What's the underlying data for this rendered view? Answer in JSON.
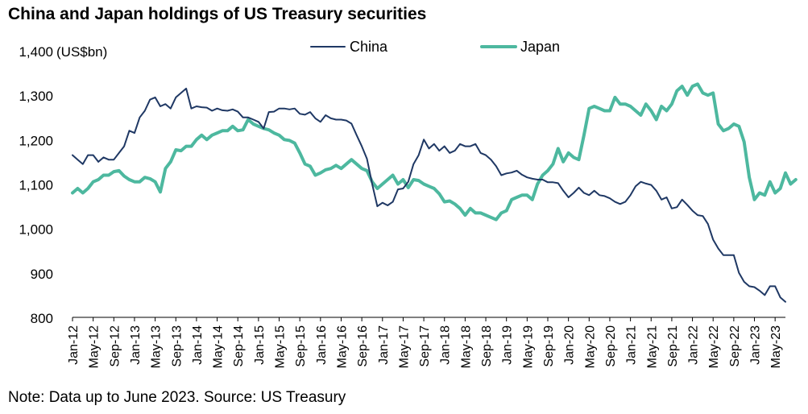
{
  "chart_data": {
    "type": "line",
    "title": "China and Japan holdings of US Treasury securities",
    "ylabel": "(US$bn)",
    "xlabel": "",
    "ylim": [
      800,
      1400
    ],
    "yticks": [
      800,
      900,
      1000,
      1100,
      1200,
      1300,
      1400
    ],
    "ytick_labels": [
      "800",
      "900",
      "1,000",
      "1,100",
      "1,200",
      "1,300",
      "1,400"
    ],
    "xlim": [
      "Jan-12",
      "Jun-23"
    ],
    "xtick_labels": [
      "Jan-12",
      "May-12",
      "Sep-12",
      "Jan-13",
      "May-13",
      "Sep-13",
      "Jan-14",
      "May-14",
      "Sep-14",
      "Jan-15",
      "May-15",
      "Sep-15",
      "Jan-16",
      "May-16",
      "Sep-16",
      "Jan-17",
      "May-17",
      "Sep-17",
      "Jan-18",
      "May-18",
      "Sep-18",
      "Jan-19",
      "May-19",
      "Sep-19",
      "Jan-20",
      "May-20",
      "Sep-20",
      "Jan-21",
      "May-21",
      "Sep-21",
      "Jan-22",
      "May-22",
      "Sep-22",
      "Jan-23",
      "May-23"
    ],
    "grid": false,
    "legend_position": "top-center",
    "series": [
      {
        "name": "China",
        "color": "#1F3864",
        "line_width": 2,
        "values": [
          1165,
          1155,
          1145,
          1165,
          1165,
          1150,
          1160,
          1155,
          1155,
          1170,
          1185,
          1220,
          1215,
          1250,
          1265,
          1290,
          1295,
          1275,
          1280,
          1270,
          1295,
          1305,
          1315,
          1270,
          1275,
          1273,
          1272,
          1265,
          1270,
          1266,
          1265,
          1268,
          1263,
          1250,
          1250,
          1245,
          1240,
          1225,
          1262,
          1263,
          1270,
          1270,
          1268,
          1270,
          1258,
          1256,
          1262,
          1248,
          1240,
          1255,
          1248,
          1245,
          1245,
          1243,
          1236,
          1210,
          1185,
          1157,
          1100,
          1050,
          1058,
          1052,
          1060,
          1088,
          1090,
          1105,
          1145,
          1165,
          1200,
          1180,
          1190,
          1175,
          1185,
          1170,
          1175,
          1190,
          1185,
          1185,
          1190,
          1170,
          1165,
          1155,
          1140,
          1120,
          1124,
          1126,
          1130,
          1121,
          1115,
          1112,
          1110,
          1110,
          1104,
          1104,
          1102,
          1085,
          1070,
          1080,
          1092,
          1080,
          1075,
          1085,
          1075,
          1073,
          1068,
          1060,
          1055,
          1060,
          1075,
          1095,
          1105,
          1101,
          1098,
          1085,
          1065,
          1070,
          1045,
          1048,
          1065,
          1053,
          1040,
          1030,
          1028,
          1010,
          975,
          955,
          940,
          940,
          940,
          900,
          880,
          870,
          868,
          860,
          850,
          870,
          870,
          845,
          835
        ]
      },
      {
        "name": "Japan",
        "color": "#4DB89F",
        "line_width": 4,
        "values": [
          1080,
          1090,
          1080,
          1090,
          1105,
          1110,
          1120,
          1120,
          1128,
          1130,
          1118,
          1110,
          1105,
          1105,
          1115,
          1112,
          1105,
          1082,
          1135,
          1150,
          1177,
          1175,
          1185,
          1185,
          1200,
          1210,
          1200,
          1210,
          1215,
          1220,
          1220,
          1230,
          1220,
          1222,
          1245,
          1235,
          1230,
          1225,
          1222,
          1215,
          1210,
          1200,
          1198,
          1192,
          1170,
          1145,
          1140,
          1120,
          1125,
          1132,
          1135,
          1142,
          1135,
          1145,
          1155,
          1145,
          1135,
          1130,
          1105,
          1090,
          1100,
          1110,
          1120,
          1100,
          1110,
          1092,
          1110,
          1108,
          1100,
          1095,
          1090,
          1078,
          1060,
          1062,
          1055,
          1045,
          1030,
          1045,
          1035,
          1035,
          1030,
          1025,
          1020,
          1035,
          1040,
          1065,
          1070,
          1075,
          1075,
          1065,
          1100,
          1120,
          1130,
          1145,
          1180,
          1150,
          1170,
          1160,
          1155,
          1210,
          1270,
          1275,
          1270,
          1265,
          1265,
          1295,
          1280,
          1280,
          1275,
          1265,
          1255,
          1280,
          1265,
          1245,
          1275,
          1265,
          1280,
          1310,
          1320,
          1300,
          1320,
          1325,
          1305,
          1300,
          1305,
          1235,
          1220,
          1225,
          1235,
          1230,
          1195,
          1115,
          1065,
          1080,
          1075,
          1105,
          1080,
          1090,
          1125,
          1100,
          1110
        ]
      }
    ]
  },
  "footer": {
    "note": "Note: Data up to June 2023. Source: US Treasury"
  }
}
